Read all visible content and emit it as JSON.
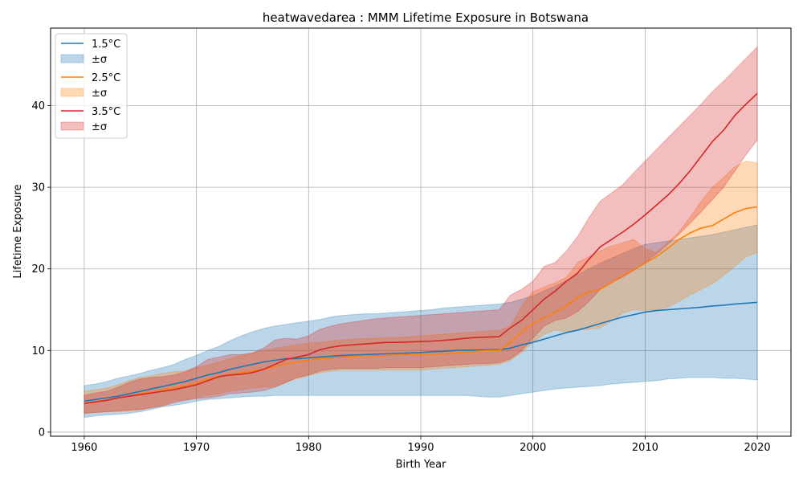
{
  "chart_data": {
    "type": "line",
    "title": "heatwavedarea : MMM Lifetime Exposure in Botswana",
    "xlabel": "Birth Year",
    "ylabel": "Lifetime Exposure",
    "xlim": [
      1957,
      2023
    ],
    "ylim": [
      -0.5,
      49.5
    ],
    "xticks": [
      1960,
      1970,
      1980,
      1990,
      2000,
      2010,
      2020
    ],
    "yticks": [
      0,
      10,
      20,
      30,
      40
    ],
    "grid": true,
    "legend_position": "top-left",
    "legend_entries": [
      "1.5°C",
      "±σ",
      "2.5°C",
      "±σ",
      "3.5°C",
      "±σ"
    ],
    "series": [
      {
        "name": "1.5°C",
        "color": "#1f77b4",
        "x": [
          1960,
          1961,
          1962,
          1963,
          1964,
          1965,
          1966,
          1967,
          1968,
          1969,
          1970,
          1971,
          1972,
          1973,
          1974,
          1975,
          1976,
          1977,
          1978,
          1979,
          1980,
          1981,
          1982,
          1983,
          1984,
          1985,
          1986,
          1987,
          1988,
          1989,
          1990,
          1991,
          1992,
          1993,
          1994,
          1995,
          1996,
          1997,
          1998,
          1999,
          2000,
          2001,
          2002,
          2003,
          2004,
          2005,
          2006,
          2007,
          2008,
          2009,
          2010,
          2011,
          2012,
          2013,
          2014,
          2015,
          2016,
          2017,
          2018,
          2019,
          2020
        ],
        "values": [
          3.8,
          4.0,
          4.2,
          4.4,
          4.7,
          5.0,
          5.3,
          5.6,
          5.9,
          6.2,
          6.6,
          7.0,
          7.3,
          7.7,
          8.0,
          8.3,
          8.6,
          8.8,
          9.0,
          9.0,
          9.1,
          9.2,
          9.3,
          9.4,
          9.45,
          9.5,
          9.55,
          9.6,
          9.65,
          9.7,
          9.75,
          9.85,
          9.9,
          10.0,
          10.05,
          10.05,
          10.1,
          10.1,
          10.3,
          10.7,
          11.0,
          11.4,
          11.8,
          12.2,
          12.5,
          12.9,
          13.3,
          13.7,
          14.1,
          14.4,
          14.7,
          14.9,
          15.0,
          15.1,
          15.2,
          15.3,
          15.45,
          15.55,
          15.7,
          15.8,
          15.9
        ],
        "lower": [
          1.8,
          2.0,
          2.1,
          2.2,
          2.3,
          2.5,
          2.8,
          3.1,
          3.3,
          3.5,
          3.8,
          4.0,
          4.1,
          4.2,
          4.3,
          4.4,
          4.4,
          4.5,
          4.5,
          4.5,
          4.5,
          4.5,
          4.5,
          4.5,
          4.5,
          4.5,
          4.5,
          4.5,
          4.5,
          4.5,
          4.5,
          4.5,
          4.5,
          4.5,
          4.5,
          4.4,
          4.3,
          4.3,
          4.5,
          4.7,
          4.9,
          5.1,
          5.3,
          5.4,
          5.5,
          5.6,
          5.7,
          5.9,
          6.0,
          6.1,
          6.2,
          6.3,
          6.5,
          6.6,
          6.7,
          6.7,
          6.7,
          6.6,
          6.6,
          6.5,
          6.4
        ],
        "upper": [
          5.7,
          5.9,
          6.2,
          6.6,
          6.9,
          7.2,
          7.6,
          7.9,
          8.3,
          8.9,
          9.4,
          10.0,
          10.5,
          11.2,
          11.8,
          12.3,
          12.7,
          13.0,
          13.2,
          13.4,
          13.6,
          13.8,
          14.1,
          14.3,
          14.4,
          14.5,
          14.5,
          14.6,
          14.7,
          14.8,
          14.9,
          15.0,
          15.2,
          15.3,
          15.4,
          15.5,
          15.6,
          15.7,
          15.9,
          16.3,
          16.7,
          17.3,
          17.9,
          18.6,
          19.3,
          20.0,
          20.7,
          21.3,
          21.9,
          22.5,
          23.0,
          23.2,
          23.4,
          23.6,
          23.8,
          24.0,
          24.2,
          24.5,
          24.8,
          25.1,
          25.4
        ]
      },
      {
        "name": "2.5°C",
        "color": "#ff7f0e",
        "x": [
          1960,
          1961,
          1962,
          1963,
          1964,
          1965,
          1966,
          1967,
          1968,
          1969,
          1970,
          1971,
          1972,
          1973,
          1974,
          1975,
          1976,
          1977,
          1978,
          1979,
          1980,
          1981,
          1982,
          1983,
          1984,
          1985,
          1986,
          1987,
          1988,
          1989,
          1990,
          1991,
          1992,
          1993,
          1994,
          1995,
          1996,
          1997,
          1998,
          1999,
          2000,
          2001,
          2002,
          2003,
          2004,
          2005,
          2006,
          2007,
          2008,
          2009,
          2010,
          2011,
          2012,
          2013,
          2014,
          2015,
          2016,
          2017,
          2018,
          2019,
          2020
        ],
        "values": [
          3.5,
          3.7,
          3.9,
          4.2,
          4.4,
          4.7,
          4.9,
          5.2,
          5.4,
          5.7,
          6.0,
          6.5,
          6.8,
          7.1,
          7.3,
          7.5,
          7.7,
          8.0,
          8.4,
          8.6,
          8.8,
          9.0,
          9.1,
          9.2,
          9.3,
          9.35,
          9.35,
          9.4,
          9.45,
          9.5,
          9.5,
          9.55,
          9.6,
          9.7,
          9.8,
          9.9,
          10.0,
          10.0,
          11.0,
          12.3,
          13.3,
          14.0,
          14.7,
          15.5,
          16.5,
          17.2,
          17.5,
          18.3,
          19.2,
          19.9,
          20.7,
          21.5,
          22.5,
          23.6,
          24.4,
          25.0,
          25.3,
          26.1,
          26.9,
          27.4,
          27.6
        ],
        "lower": [
          2.3,
          2.4,
          2.5,
          2.5,
          2.6,
          2.7,
          3.0,
          3.3,
          3.8,
          4.0,
          4.2,
          4.5,
          4.7,
          5.0,
          5.2,
          5.4,
          5.5,
          5.6,
          6.1,
          6.6,
          6.9,
          7.3,
          7.5,
          7.6,
          7.6,
          7.6,
          7.6,
          7.6,
          7.6,
          7.6,
          7.6,
          7.7,
          7.8,
          7.9,
          8.0,
          8.1,
          8.2,
          8.3,
          8.8,
          9.8,
          11.0,
          12.0,
          12.5,
          12.3,
          12.5,
          12.6,
          12.8,
          13.6,
          14.6,
          15.0,
          14.9,
          15.0,
          15.3,
          16.0,
          16.8,
          17.5,
          18.2,
          19.2,
          20.3,
          21.5,
          22.0
        ],
        "upper": [
          5.0,
          5.2,
          5.4,
          5.8,
          6.3,
          6.7,
          6.9,
          7.2,
          7.4,
          7.5,
          7.9,
          8.2,
          8.6,
          9.0,
          9.4,
          9.7,
          10.0,
          10.3,
          10.5,
          10.7,
          10.9,
          11.0,
          11.2,
          11.3,
          11.4,
          11.5,
          11.5,
          11.6,
          11.6,
          11.7,
          11.8,
          11.9,
          12.0,
          12.1,
          12.2,
          12.3,
          12.4,
          12.5,
          13.0,
          15.5,
          17.2,
          17.8,
          18.3,
          19.0,
          20.8,
          21.5,
          22.2,
          22.8,
          23.2,
          23.6,
          22.5,
          22.0,
          23.2,
          24.5,
          26.3,
          28.3,
          30.0,
          31.2,
          32.5,
          33.2,
          33.0
        ]
      },
      {
        "name": "3.5°C",
        "color": "#d62728",
        "x": [
          1960,
          1961,
          1962,
          1963,
          1964,
          1965,
          1966,
          1967,
          1968,
          1969,
          1970,
          1971,
          1972,
          1973,
          1974,
          1975,
          1976,
          1977,
          1978,
          1979,
          1980,
          1981,
          1982,
          1983,
          1984,
          1985,
          1986,
          1987,
          1988,
          1989,
          1990,
          1991,
          1992,
          1993,
          1994,
          1995,
          1996,
          1997,
          1998,
          1999,
          2000,
          2001,
          2002,
          2003,
          2004,
          2005,
          2006,
          2007,
          2008,
          2009,
          2010,
          2011,
          2012,
          2013,
          2014,
          2015,
          2016,
          2017,
          2018,
          2019,
          2020
        ],
        "values": [
          3.5,
          3.7,
          3.9,
          4.2,
          4.4,
          4.6,
          4.8,
          5.0,
          5.2,
          5.5,
          5.8,
          6.3,
          6.8,
          7.0,
          7.1,
          7.3,
          7.7,
          8.3,
          8.9,
          9.2,
          9.5,
          10.1,
          10.4,
          10.6,
          10.7,
          10.8,
          10.9,
          11.0,
          11.0,
          11.05,
          11.1,
          11.15,
          11.25,
          11.35,
          11.5,
          11.6,
          11.65,
          11.7,
          12.8,
          13.7,
          15.0,
          16.3,
          17.3,
          18.5,
          19.5,
          21.2,
          22.7,
          23.6,
          24.5,
          25.5,
          26.6,
          27.8,
          29.0,
          30.4,
          32.0,
          33.8,
          35.6,
          37.0,
          38.8,
          40.2,
          41.5
        ],
        "lower": [
          2.3,
          2.4,
          2.5,
          2.6,
          2.7,
          2.8,
          3.0,
          3.2,
          3.6,
          3.9,
          4.1,
          4.2,
          4.4,
          4.7,
          4.8,
          4.9,
          5.1,
          5.5,
          6.1,
          6.7,
          7.0,
          7.5,
          7.7,
          7.8,
          7.8,
          7.8,
          7.8,
          7.9,
          7.9,
          7.9,
          7.9,
          8.0,
          8.1,
          8.2,
          8.3,
          8.4,
          8.4,
          8.5,
          9.0,
          10.0,
          11.5,
          13.0,
          13.7,
          14.0,
          14.8,
          16.0,
          17.5,
          18.3,
          19.0,
          19.8,
          20.8,
          21.8,
          23.0,
          24.2,
          25.6,
          27.0,
          28.5,
          30.0,
          32.0,
          34.0,
          35.8
        ],
        "upper": [
          4.5,
          4.8,
          5.0,
          5.5,
          6.1,
          6.5,
          6.7,
          6.8,
          7.0,
          7.4,
          8.0,
          8.9,
          9.2,
          9.5,
          9.5,
          9.7,
          10.3,
          11.3,
          11.5,
          11.4,
          11.8,
          12.6,
          13.0,
          13.3,
          13.5,
          13.7,
          13.9,
          14.0,
          14.1,
          14.2,
          14.3,
          14.4,
          14.5,
          14.6,
          14.7,
          14.8,
          14.9,
          15.0,
          16.8,
          17.5,
          18.5,
          20.3,
          20.8,
          22.2,
          24.0,
          26.3,
          28.3,
          29.3,
          30.3,
          31.8,
          33.2,
          34.6,
          36.0,
          37.4,
          38.8,
          40.2,
          41.7,
          43.0,
          44.4,
          45.8,
          47.2
        ]
      }
    ]
  }
}
